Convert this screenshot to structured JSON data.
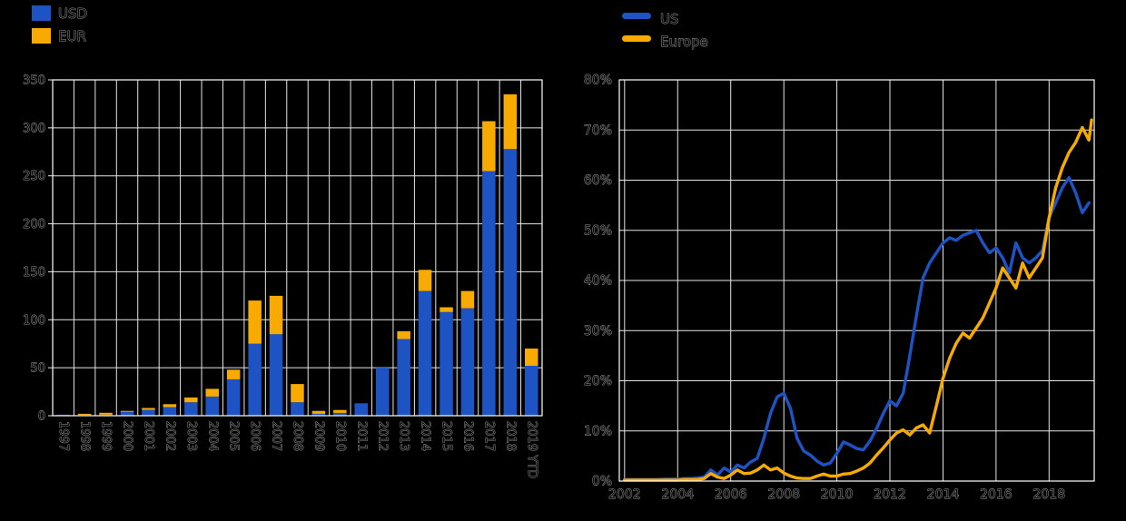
{
  "colors": {
    "background": "#000000",
    "us_blue": "#1e53c3",
    "eur_yellow": "#f7ab00",
    "grid": "#ffffff",
    "text_outline": "#9b9b9b"
  },
  "chart_data": [
    {
      "type": "bar",
      "stacked": true,
      "title": "",
      "xlabel": "",
      "ylabel": "",
      "legend_position": "top-left",
      "grid": true,
      "ylim": [
        0,
        350
      ],
      "ytick_step": 50,
      "ytick_labels": [
        "0",
        "50",
        "100",
        "150",
        "200",
        "250",
        "300",
        "350"
      ],
      "categories": [
        "1997",
        "1998",
        "1999",
        "2000",
        "2001",
        "2002",
        "2003",
        "2004",
        "2005",
        "2006",
        "2007",
        "2008",
        "2009",
        "2010",
        "2011",
        "2012",
        "2013",
        "2014",
        "2015",
        "2016",
        "2017",
        "2018",
        "2019 YTD"
      ],
      "series": [
        {
          "name": "USD",
          "color": "#1e53c3",
          "values": [
            1,
            1,
            1,
            4,
            6,
            9,
            14,
            20,
            38,
            75,
            85,
            14,
            2,
            3,
            13,
            50,
            80,
            130,
            108,
            112,
            255,
            278,
            52
          ]
        },
        {
          "name": "EUR",
          "color": "#f7ab00",
          "values": [
            0,
            1,
            2,
            1,
            2,
            3,
            5,
            8,
            10,
            45,
            40,
            19,
            3,
            3,
            0,
            0,
            8,
            22,
            5,
            18,
            52,
            57,
            18
          ]
        }
      ]
    },
    {
      "type": "line",
      "title": "",
      "xlabel": "",
      "ylabel": "",
      "legend_position": "top-left",
      "grid": true,
      "xlim": [
        2001.8,
        2019.7
      ],
      "ylim": [
        0,
        80
      ],
      "ytick_step": 10,
      "ytick_labels": [
        "0%",
        "10%",
        "20%",
        "30%",
        "40%",
        "50%",
        "60%",
        "70%",
        "80%"
      ],
      "xtick_values": [
        2002,
        2004,
        2006,
        2008,
        2010,
        2012,
        2014,
        2016,
        2018
      ],
      "xtick_labels": [
        "2002",
        "2004",
        "2006",
        "2008",
        "2010",
        "2012",
        "2014",
        "2016",
        "2018"
      ],
      "series": [
        {
          "name": "US",
          "color": "#1e53c3",
          "points": [
            [
              2002.0,
              0.3
            ],
            [
              2002.25,
              0.3
            ],
            [
              2002.5,
              0.3
            ],
            [
              2002.75,
              0.3
            ],
            [
              2003.0,
              0.3
            ],
            [
              2003.25,
              0.3
            ],
            [
              2003.5,
              0.4
            ],
            [
              2003.75,
              0.4
            ],
            [
              2004.0,
              0.4
            ],
            [
              2004.25,
              0.5
            ],
            [
              2004.5,
              0.5
            ],
            [
              2004.75,
              0.6
            ],
            [
              2005.0,
              0.8
            ],
            [
              2005.25,
              2.2
            ],
            [
              2005.5,
              1.2
            ],
            [
              2005.75,
              2.6
            ],
            [
              2006.0,
              1.8
            ],
            [
              2006.25,
              3.2
            ],
            [
              2006.5,
              2.6
            ],
            [
              2006.75,
              3.8
            ],
            [
              2007.0,
              4.5
            ],
            [
              2007.25,
              8.5
            ],
            [
              2007.5,
              13.5
            ],
            [
              2007.75,
              16.8
            ],
            [
              2008.0,
              17.5
            ],
            [
              2008.25,
              14.5
            ],
            [
              2008.5,
              8.5
            ],
            [
              2008.75,
              6.0
            ],
            [
              2009.0,
              5.2
            ],
            [
              2009.25,
              4.0
            ],
            [
              2009.5,
              3.2
            ],
            [
              2009.75,
              3.6
            ],
            [
              2010.0,
              5.5
            ],
            [
              2010.25,
              7.8
            ],
            [
              2010.5,
              7.2
            ],
            [
              2010.75,
              6.5
            ],
            [
              2011.0,
              6.2
            ],
            [
              2011.25,
              8.0
            ],
            [
              2011.5,
              10.5
            ],
            [
              2011.75,
              13.5
            ],
            [
              2012.0,
              16.0
            ],
            [
              2012.25,
              15.0
            ],
            [
              2012.5,
              17.5
            ],
            [
              2012.75,
              25.0
            ],
            [
              2013.0,
              33.0
            ],
            [
              2013.25,
              40.5
            ],
            [
              2013.5,
              43.5
            ],
            [
              2013.75,
              45.5
            ],
            [
              2014.0,
              47.5
            ],
            [
              2014.25,
              48.5
            ],
            [
              2014.5,
              48.0
            ],
            [
              2014.75,
              49.0
            ],
            [
              2015.0,
              49.5
            ],
            [
              2015.25,
              50.0
            ],
            [
              2015.5,
              47.5
            ],
            [
              2015.75,
              45.5
            ],
            [
              2016.0,
              46.5
            ],
            [
              2016.25,
              44.5
            ],
            [
              2016.5,
              41.5
            ],
            [
              2016.75,
              47.5
            ],
            [
              2017.0,
              44.5
            ],
            [
              2017.25,
              43.5
            ],
            [
              2017.5,
              44.5
            ],
            [
              2017.75,
              46.0
            ],
            [
              2018.0,
              52.5
            ],
            [
              2018.25,
              55.5
            ],
            [
              2018.5,
              58.5
            ],
            [
              2018.75,
              60.5
            ],
            [
              2019.0,
              57.5
            ],
            [
              2019.25,
              53.5
            ],
            [
              2019.5,
              55.5
            ]
          ]
        },
        {
          "name": "Europe",
          "color": "#f7ab00",
          "points": [
            [
              2002.0,
              0.2
            ],
            [
              2002.25,
              0.2
            ],
            [
              2002.5,
              0.2
            ],
            [
              2002.75,
              0.2
            ],
            [
              2003.0,
              0.2
            ],
            [
              2003.25,
              0.2
            ],
            [
              2003.5,
              0.2
            ],
            [
              2003.75,
              0.2
            ],
            [
              2004.0,
              0.2
            ],
            [
              2004.25,
              0.3
            ],
            [
              2004.5,
              0.3
            ],
            [
              2004.75,
              0.3
            ],
            [
              2005.0,
              0.5
            ],
            [
              2005.25,
              1.5
            ],
            [
              2005.5,
              0.8
            ],
            [
              2005.75,
              0.5
            ],
            [
              2006.0,
              1.2
            ],
            [
              2006.25,
              2.2
            ],
            [
              2006.5,
              1.5
            ],
            [
              2006.75,
              1.6
            ],
            [
              2007.0,
              2.2
            ],
            [
              2007.25,
              3.2
            ],
            [
              2007.5,
              2.2
            ],
            [
              2007.75,
              2.6
            ],
            [
              2008.0,
              1.6
            ],
            [
              2008.25,
              1.0
            ],
            [
              2008.5,
              0.6
            ],
            [
              2008.75,
              0.5
            ],
            [
              2009.0,
              0.5
            ],
            [
              2009.25,
              1.0
            ],
            [
              2009.5,
              1.4
            ],
            [
              2009.75,
              1.0
            ],
            [
              2010.0,
              1.0
            ],
            [
              2010.25,
              1.4
            ],
            [
              2010.5,
              1.5
            ],
            [
              2010.75,
              2.0
            ],
            [
              2011.0,
              2.6
            ],
            [
              2011.25,
              3.6
            ],
            [
              2011.5,
              5.2
            ],
            [
              2011.75,
              6.6
            ],
            [
              2012.0,
              8.2
            ],
            [
              2012.25,
              9.6
            ],
            [
              2012.5,
              10.2
            ],
            [
              2012.75,
              9.2
            ],
            [
              2013.0,
              10.6
            ],
            [
              2013.25,
              11.2
            ],
            [
              2013.5,
              9.6
            ],
            [
              2013.75,
              15.0
            ],
            [
              2014.0,
              20.5
            ],
            [
              2014.25,
              24.5
            ],
            [
              2014.5,
              27.5
            ],
            [
              2014.75,
              29.5
            ],
            [
              2015.0,
              28.5
            ],
            [
              2015.25,
              30.5
            ],
            [
              2015.5,
              32.5
            ],
            [
              2015.75,
              35.5
            ],
            [
              2016.0,
              38.5
            ],
            [
              2016.25,
              42.5
            ],
            [
              2016.5,
              40.5
            ],
            [
              2016.75,
              38.5
            ],
            [
              2017.0,
              43.5
            ],
            [
              2017.25,
              40.5
            ],
            [
              2017.5,
              42.5
            ],
            [
              2017.75,
              44.5
            ],
            [
              2018.0,
              52.5
            ],
            [
              2018.25,
              58.5
            ],
            [
              2018.5,
              62.5
            ],
            [
              2018.75,
              65.5
            ],
            [
              2019.0,
              67.5
            ],
            [
              2019.25,
              70.5
            ],
            [
              2019.5,
              68.0
            ],
            [
              2019.6,
              72.0
            ]
          ]
        }
      ]
    }
  ]
}
